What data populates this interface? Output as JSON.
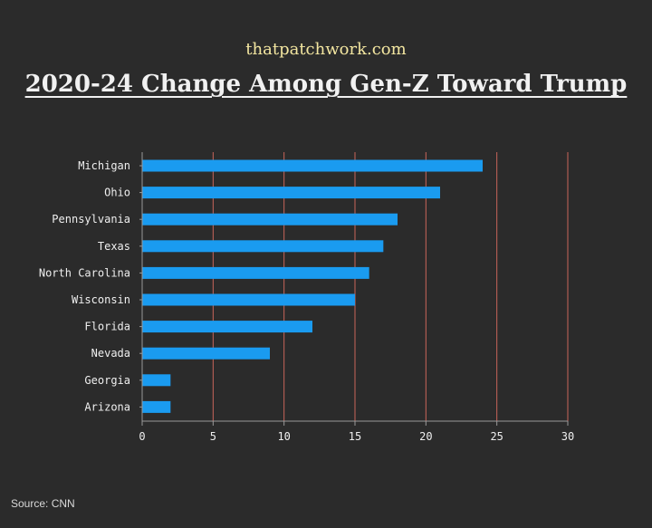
{
  "header": {
    "brand": "thatpatchwork.com",
    "title": "2020-24 Change Among Gen-Z Toward Trump"
  },
  "footer": {
    "source": "Source: CNN"
  },
  "colors": {
    "background": "#2b2b2b",
    "bar": "#1a9bf0",
    "gridline": "#c9655a",
    "axis": "#9a9a9a",
    "brand": "#f3e6a0",
    "text": "#f1f1f1"
  },
  "chart_data": {
    "type": "bar",
    "orientation": "horizontal",
    "categories": [
      "Michigan",
      "Ohio",
      "Pennsylvania",
      "Texas",
      "North Carolina",
      "Wisconsin",
      "Florida",
      "Nevada",
      "Georgia",
      "Arizona"
    ],
    "values": [
      24,
      21,
      18,
      17,
      16,
      15,
      12,
      9,
      2,
      2
    ],
    "xlim": [
      0,
      30
    ],
    "xticks": [
      0,
      5,
      10,
      15,
      20,
      25,
      30
    ],
    "grid": "vertical",
    "title": "2020-24 Change Among Gen-Z Toward Trump",
    "xlabel": "",
    "ylabel": ""
  }
}
